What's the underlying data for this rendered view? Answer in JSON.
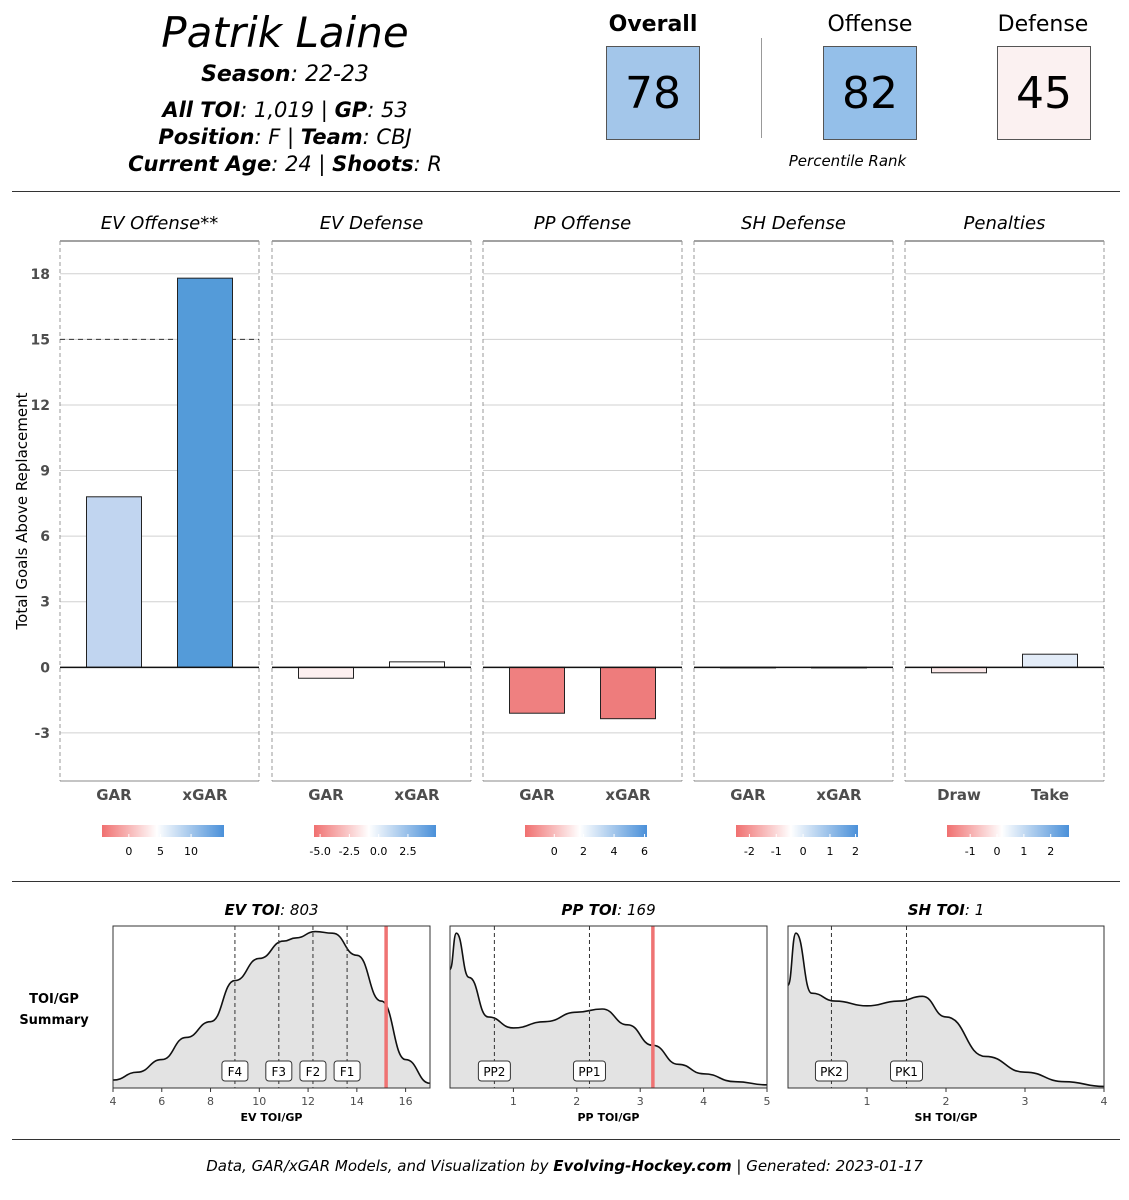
{
  "player": {
    "name": "Patrik Laine",
    "season_label": "Season",
    "season": ": 22-23",
    "toi_label": "All TOI",
    "toi": ": 1,019 | ",
    "gp_label": "GP",
    "gp": ": 53",
    "position_label": "Position",
    "position": ": F | ",
    "team_label": "Team",
    "team": ": CBJ",
    "age_label": "Current Age",
    "age": ": 24 | ",
    "shoots_label": "Shoots",
    "shoots": ": R"
  },
  "ranks": {
    "overall_label": "Overall",
    "overall": "78",
    "offense_label": "Offense",
    "offense": "82",
    "defense_label": "Defense",
    "defense": "45",
    "caption": "Percentile Rank",
    "colors": {
      "overall": "#a3c6ea",
      "offense": "#94bfe9",
      "defense": "#fbf1f1"
    }
  },
  "chart_data": [
    {
      "type": "bar",
      "ylabel": "Total Goals Above Replacement",
      "ylim": [
        -5.2,
        19.5
      ],
      "yticks": [
        -3,
        0,
        3,
        6,
        9,
        12,
        15,
        18
      ],
      "reference_line": 15,
      "panels": [
        {
          "title": "EV Offense**",
          "categories": [
            "GAR",
            "xGAR"
          ],
          "values": [
            7.8,
            17.8
          ],
          "colors": [
            "#c1d5f0",
            "#549bd9"
          ],
          "scale_ticks": [
            "0",
            "5",
            "10"
          ],
          "scale_tick_pos": [
            0.22,
            0.48,
            0.73
          ]
        },
        {
          "title": "EV Defense",
          "categories": [
            "GAR",
            "xGAR"
          ],
          "values": [
            -0.5,
            0.25
          ],
          "colors": [
            "#fdf0f0",
            "#ffffff"
          ],
          "scale_ticks": [
            "-5.0",
            "-2.5",
            "0.0",
            "2.5"
          ],
          "scale_tick_pos": [
            0.05,
            0.29,
            0.53,
            0.77
          ]
        },
        {
          "title": "PP Offense",
          "categories": [
            "GAR",
            "xGAR"
          ],
          "values": [
            -2.1,
            -2.35
          ],
          "colors": [
            "#ef8080",
            "#ee7c7c"
          ],
          "scale_ticks": [
            "0",
            "2",
            "4",
            "6"
          ],
          "scale_tick_pos": [
            0.24,
            0.48,
            0.73,
            0.98
          ]
        },
        {
          "title": "SH Defense",
          "categories": [
            "GAR",
            "xGAR"
          ],
          "values": [
            0.0,
            0.0
          ],
          "colors": [
            "#ffffff",
            "#ffffff"
          ],
          "scale_ticks": [
            "-2",
            "-1",
            "0",
            "1",
            "2"
          ],
          "scale_tick_pos": [
            0.11,
            0.33,
            0.55,
            0.77,
            0.98
          ]
        },
        {
          "title": "Penalties",
          "categories": [
            "Draw",
            "Take"
          ],
          "values": [
            -0.25,
            0.6
          ],
          "colors": [
            "#fbe9e9",
            "#e3ecf8"
          ],
          "scale_ticks": [
            "-1",
            "0",
            "1",
            "2"
          ],
          "scale_tick_pos": [
            0.19,
            0.41,
            0.63,
            0.85
          ]
        }
      ]
    },
    {
      "type": "area",
      "row_label": "TOI/GP\nSummary",
      "panels": [
        {
          "title_label": "EV TOI",
          "title_value": ": 803",
          "xlabel": "EV TOI/GP",
          "xlim": [
            4,
            17
          ],
          "xticks": [
            "4",
            "6",
            "8",
            "10",
            "12",
            "14",
            "16"
          ],
          "xtick_values": [
            4,
            6,
            8,
            10,
            12,
            14,
            16
          ],
          "player_value": 15.2,
          "markers": [
            {
              "label": "F4",
              "x": 9.0
            },
            {
              "label": "F3",
              "x": 10.8
            },
            {
              "label": "F2",
              "x": 12.2
            },
            {
              "label": "F1",
              "x": 13.6
            }
          ],
          "density": [
            [
              4,
              0.05
            ],
            [
              5,
              0.1
            ],
            [
              6,
              0.18
            ],
            [
              7,
              0.32
            ],
            [
              8,
              0.42
            ],
            [
              9,
              0.68
            ],
            [
              10,
              0.82
            ],
            [
              11,
              0.93
            ],
            [
              11.5,
              0.95
            ],
            [
              12.3,
              0.99
            ],
            [
              13,
              0.98
            ],
            [
              14,
              0.84
            ],
            [
              15,
              0.55
            ],
            [
              16,
              0.18
            ],
            [
              17,
              0.03
            ]
          ]
        },
        {
          "title_label": "PP TOI",
          "title_value": ": 169",
          "xlabel": "PP TOI/GP",
          "xlim": [
            0,
            5
          ],
          "xticks": [
            "1",
            "2",
            "3",
            "4",
            "5"
          ],
          "xtick_values": [
            1,
            2,
            3,
            4,
            5
          ],
          "player_value": 3.2,
          "markers": [
            {
              "label": "PP2",
              "x": 0.7
            },
            {
              "label": "PP1",
              "x": 2.2
            }
          ],
          "density": [
            [
              0,
              0.75
            ],
            [
              0.1,
              0.98
            ],
            [
              0.3,
              0.7
            ],
            [
              0.6,
              0.45
            ],
            [
              1,
              0.38
            ],
            [
              1.5,
              0.42
            ],
            [
              2,
              0.48
            ],
            [
              2.4,
              0.5
            ],
            [
              2.8,
              0.4
            ],
            [
              3.2,
              0.27
            ],
            [
              3.6,
              0.15
            ],
            [
              4,
              0.09
            ],
            [
              4.5,
              0.04
            ],
            [
              5,
              0.02
            ]
          ]
        },
        {
          "title_label": "SH TOI",
          "title_value": ": 1",
          "xlabel": "SH TOI/GP",
          "xlim": [
            0,
            4
          ],
          "xticks": [
            "1",
            "2",
            "3",
            "4"
          ],
          "xtick_values": [
            1,
            2,
            3,
            4
          ],
          "markers": [
            {
              "label": "PK2",
              "x": 0.55
            },
            {
              "label": "PK1",
              "x": 1.5
            }
          ],
          "density": [
            [
              0,
              0.65
            ],
            [
              0.1,
              0.98
            ],
            [
              0.3,
              0.6
            ],
            [
              0.6,
              0.55
            ],
            [
              1,
              0.52
            ],
            [
              1.4,
              0.55
            ],
            [
              1.7,
              0.58
            ],
            [
              2,
              0.45
            ],
            [
              2.5,
              0.2
            ],
            [
              3,
              0.1
            ],
            [
              3.5,
              0.04
            ],
            [
              4,
              0.01
            ]
          ]
        }
      ]
    }
  ],
  "footer": {
    "prefix": "Data, GAR/xGAR Models, and Visualization by ",
    "site": "Evolving-Hockey.com",
    "suffix": "  | Generated:  2023-01-17"
  }
}
